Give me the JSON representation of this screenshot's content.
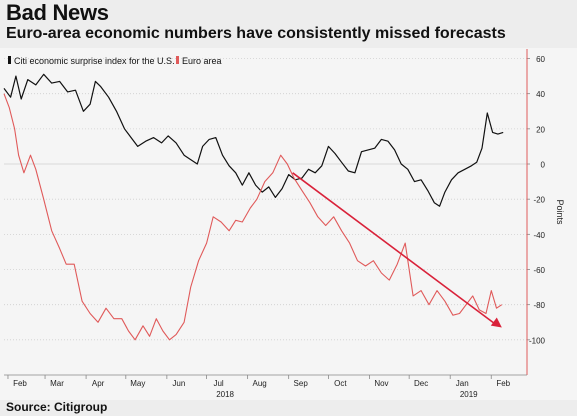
{
  "header": {
    "title": "Bad News",
    "subtitle": "Euro-area economic numbers have consistently missed forecasts"
  },
  "footer": {
    "source": "Source: Citigroup"
  },
  "colors": {
    "us": "#111111",
    "euro": "#e05a5a",
    "arrow": "#d9223a",
    "grid": "#cfcfcf"
  },
  "chart_data": {
    "type": "line",
    "title": "Bad News",
    "subtitle": "Euro-area economic numbers have consistently missed forecasts",
    "ylabel": "Points",
    "ylim": [
      -120,
      62
    ],
    "y_ticks": [
      60,
      40,
      20,
      0,
      -20,
      -40,
      -60,
      -80,
      -100
    ],
    "x_range": [
      "2018-01-29",
      "2019-02-28"
    ],
    "x_ticks": [
      {
        "label": "Feb",
        "date": "2018-02-01"
      },
      {
        "label": "Mar",
        "date": "2018-03-01"
      },
      {
        "label": "Apr",
        "date": "2018-04-01"
      },
      {
        "label": "May",
        "date": "2018-05-01"
      },
      {
        "label": "Jun",
        "date": "2018-06-01"
      },
      {
        "label": "Jul",
        "date": "2018-07-01"
      },
      {
        "label": "Aug",
        "date": "2018-08-01"
      },
      {
        "label": "Sep",
        "date": "2018-09-01"
      },
      {
        "label": "Oct",
        "date": "2018-10-01"
      },
      {
        "label": "Nov",
        "date": "2018-11-01"
      },
      {
        "label": "Dec",
        "date": "2018-12-01"
      },
      {
        "label": "Jan",
        "date": "2019-01-01"
      },
      {
        "label": "Feb",
        "date": "2019-02-01"
      }
    ],
    "year_labels": [
      {
        "label": "2018",
        "date": "2018-07-15"
      },
      {
        "label": "2019",
        "date": "2019-01-15"
      }
    ],
    "grid": true,
    "legend": "top-left",
    "series": [
      {
        "name": "Citi economic surprise index for the U.S.",
        "points": [
          [
            "2018-01-29",
            43
          ],
          [
            "2018-02-03",
            38
          ],
          [
            "2018-02-07",
            50
          ],
          [
            "2018-02-11",
            37
          ],
          [
            "2018-02-16",
            48
          ],
          [
            "2018-02-22",
            45
          ],
          [
            "2018-02-28",
            51
          ],
          [
            "2018-03-06",
            46
          ],
          [
            "2018-03-12",
            47
          ],
          [
            "2018-03-18",
            41
          ],
          [
            "2018-03-24",
            42
          ],
          [
            "2018-03-30",
            30
          ],
          [
            "2018-04-04",
            34
          ],
          [
            "2018-04-08",
            47
          ],
          [
            "2018-04-12",
            44
          ],
          [
            "2018-04-18",
            38
          ],
          [
            "2018-04-24",
            30
          ],
          [
            "2018-04-30",
            20
          ],
          [
            "2018-05-05",
            15
          ],
          [
            "2018-05-10",
            10
          ],
          [
            "2018-05-16",
            13
          ],
          [
            "2018-05-22",
            15
          ],
          [
            "2018-05-28",
            12
          ],
          [
            "2018-06-02",
            16
          ],
          [
            "2018-06-08",
            12
          ],
          [
            "2018-06-14",
            5
          ],
          [
            "2018-06-20",
            2
          ],
          [
            "2018-06-24",
            0
          ],
          [
            "2018-06-28",
            10
          ],
          [
            "2018-07-03",
            14
          ],
          [
            "2018-07-08",
            15
          ],
          [
            "2018-07-13",
            5
          ],
          [
            "2018-07-18",
            -1
          ],
          [
            "2018-07-23",
            -5
          ],
          [
            "2018-07-28",
            -12
          ],
          [
            "2018-08-02",
            -5
          ],
          [
            "2018-08-07",
            -12
          ],
          [
            "2018-08-12",
            -16
          ],
          [
            "2018-08-17",
            -13
          ],
          [
            "2018-08-22",
            -19
          ],
          [
            "2018-08-27",
            -14
          ],
          [
            "2018-09-01",
            -6
          ],
          [
            "2018-09-06",
            -9
          ],
          [
            "2018-09-11",
            -8
          ],
          [
            "2018-09-16",
            -3
          ],
          [
            "2018-09-21",
            -5
          ],
          [
            "2018-09-26",
            -1
          ],
          [
            "2018-10-01",
            10
          ],
          [
            "2018-10-06",
            6
          ],
          [
            "2018-10-11",
            1
          ],
          [
            "2018-10-16",
            -4
          ],
          [
            "2018-10-21",
            -5
          ],
          [
            "2018-10-26",
            7
          ],
          [
            "2018-10-31",
            8
          ],
          [
            "2018-11-05",
            9
          ],
          [
            "2018-11-10",
            14
          ],
          [
            "2018-11-15",
            13
          ],
          [
            "2018-11-20",
            8
          ],
          [
            "2018-11-25",
            0
          ],
          [
            "2018-11-30",
            -3
          ],
          [
            "2018-12-05",
            -10
          ],
          [
            "2018-12-10",
            -9
          ],
          [
            "2018-12-15",
            -15
          ],
          [
            "2018-12-20",
            -22
          ],
          [
            "2018-12-24",
            -24
          ],
          [
            "2018-12-28",
            -16
          ],
          [
            "2019-01-02",
            -9
          ],
          [
            "2019-01-07",
            -5
          ],
          [
            "2019-01-12",
            -3
          ],
          [
            "2019-01-17",
            -1
          ],
          [
            "2019-01-21",
            1
          ],
          [
            "2019-01-25",
            9
          ],
          [
            "2019-01-29",
            29
          ],
          [
            "2019-02-02",
            18
          ],
          [
            "2019-02-06",
            17
          ],
          [
            "2019-02-10",
            18
          ]
        ]
      },
      {
        "name": "Euro area",
        "points": [
          [
            "2018-01-29",
            40
          ],
          [
            "2018-02-02",
            32
          ],
          [
            "2018-02-06",
            20
          ],
          [
            "2018-02-09",
            5
          ],
          [
            "2018-02-13",
            -5
          ],
          [
            "2018-02-18",
            5
          ],
          [
            "2018-02-22",
            -3
          ],
          [
            "2018-02-28",
            -20
          ],
          [
            "2018-03-06",
            -38
          ],
          [
            "2018-03-12",
            -48
          ],
          [
            "2018-03-17",
            -57
          ],
          [
            "2018-03-23",
            -57
          ],
          [
            "2018-03-29",
            -78
          ],
          [
            "2018-04-04",
            -85
          ],
          [
            "2018-04-10",
            -90
          ],
          [
            "2018-04-16",
            -82
          ],
          [
            "2018-04-22",
            -88
          ],
          [
            "2018-04-28",
            -88
          ],
          [
            "2018-05-03",
            -95
          ],
          [
            "2018-05-08",
            -100
          ],
          [
            "2018-05-14",
            -92
          ],
          [
            "2018-05-19",
            -98
          ],
          [
            "2018-05-24",
            -88
          ],
          [
            "2018-05-29",
            -95
          ],
          [
            "2018-06-03",
            -100
          ],
          [
            "2018-06-08",
            -97
          ],
          [
            "2018-06-14",
            -90
          ],
          [
            "2018-06-19",
            -70
          ],
          [
            "2018-06-25",
            -55
          ],
          [
            "2018-07-01",
            -45
          ],
          [
            "2018-07-06",
            -30
          ],
          [
            "2018-07-12",
            -33
          ],
          [
            "2018-07-18",
            -38
          ],
          [
            "2018-07-23",
            -32
          ],
          [
            "2018-07-28",
            -33
          ],
          [
            "2018-08-03",
            -25
          ],
          [
            "2018-08-08",
            -20
          ],
          [
            "2018-08-14",
            -10
          ],
          [
            "2018-08-20",
            -5
          ],
          [
            "2018-08-26",
            5
          ],
          [
            "2018-08-31",
            0
          ],
          [
            "2018-09-05",
            -8
          ],
          [
            "2018-09-11",
            -15
          ],
          [
            "2018-09-17",
            -22
          ],
          [
            "2018-09-23",
            -30
          ],
          [
            "2018-09-29",
            -35
          ],
          [
            "2018-10-05",
            -30
          ],
          [
            "2018-10-11",
            -38
          ],
          [
            "2018-10-17",
            -45
          ],
          [
            "2018-10-23",
            -55
          ],
          [
            "2018-10-29",
            -58
          ],
          [
            "2018-11-04",
            -55
          ],
          [
            "2018-11-10",
            -62
          ],
          [
            "2018-11-16",
            -66
          ],
          [
            "2018-11-22",
            -57
          ],
          [
            "2018-11-28",
            -45
          ],
          [
            "2018-12-04",
            -75
          ],
          [
            "2018-12-10",
            -72
          ],
          [
            "2018-12-16",
            -80
          ],
          [
            "2018-12-22",
            -72
          ],
          [
            "2018-12-28",
            -78
          ],
          [
            "2019-01-03",
            -86
          ],
          [
            "2019-01-08",
            -85
          ],
          [
            "2019-01-13",
            -80
          ],
          [
            "2019-01-18",
            -75
          ],
          [
            "2019-01-23",
            -83
          ],
          [
            "2019-01-28",
            -85
          ],
          [
            "2019-02-01",
            -72
          ],
          [
            "2019-02-05",
            -82
          ],
          [
            "2019-02-09",
            -80
          ]
        ]
      }
    ],
    "annotation_arrow": {
      "from": [
        "2018-09-04",
        -5
      ],
      "to": [
        "2019-02-09",
        -93
      ]
    }
  }
}
